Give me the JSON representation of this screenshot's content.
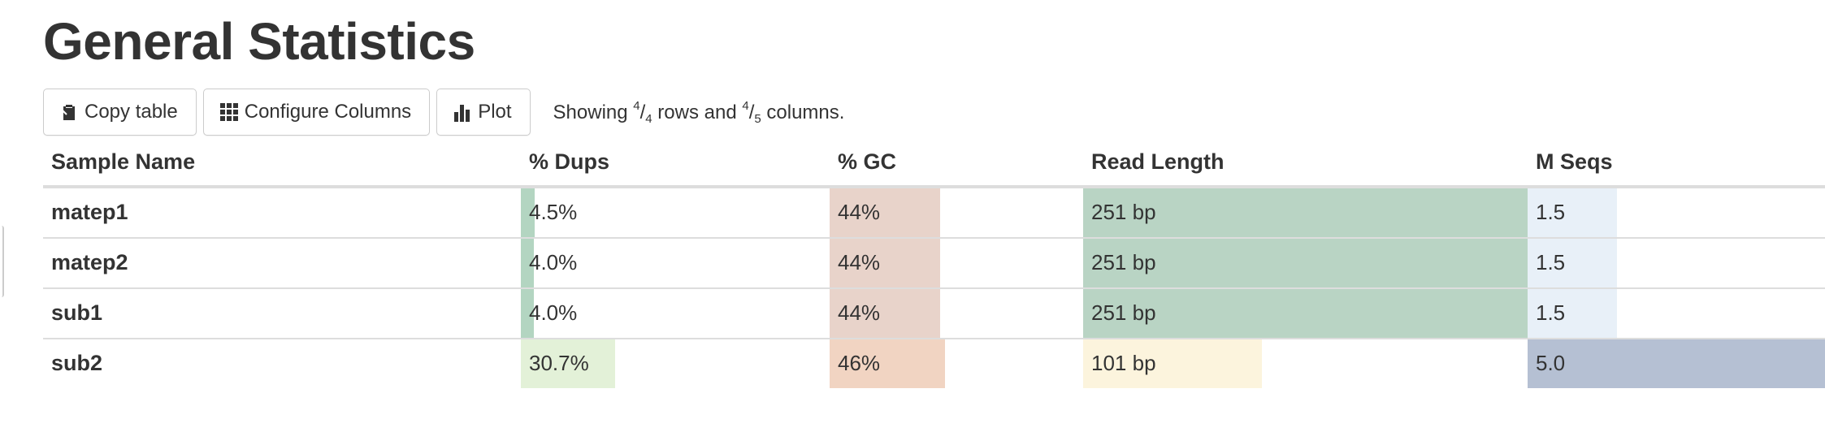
{
  "title": "General Statistics",
  "toolbar": {
    "copy_label": "Copy table",
    "configure_label": "Configure Columns",
    "plot_label": "Plot",
    "status_prefix": "Showing ",
    "rows_shown": "4",
    "rows_total": "4",
    "status_middle": " rows and ",
    "cols_shown": "4",
    "cols_total": "5",
    "status_suffix": " columns."
  },
  "columns": [
    "Sample Name",
    "% Dups",
    "% GC",
    "Read Length",
    "M Seqs"
  ],
  "rows": [
    {
      "name": "matep1",
      "dups": "4.5%",
      "gc": "44%",
      "len": "251 bp",
      "seqs": "1.5"
    },
    {
      "name": "matep2",
      "dups": "4.0%",
      "gc": "44%",
      "len": "251 bp",
      "seqs": "1.5"
    },
    {
      "name": "sub1",
      "dups": "4.0%",
      "gc": "44%",
      "len": "251 bp",
      "seqs": "1.5"
    },
    {
      "name": "sub2",
      "dups": "30.7%",
      "gc": "46%",
      "len": "101 bp",
      "seqs": "5.0"
    }
  ],
  "bar_levels": {
    "dups": [
      0.045,
      0.04,
      0.04,
      0.307
    ],
    "gc": [
      0.44,
      0.44,
      0.44,
      0.46
    ],
    "len": [
      1.0,
      1.0,
      1.0,
      0.402
    ],
    "seqs": [
      0.3,
      0.3,
      0.3,
      1.0
    ]
  },
  "bar_colors": {
    "dups": [
      "#b3d5c1",
      "#b3d5c1",
      "#b3d5c1",
      "#e3f1d8"
    ],
    "gc": [
      "#e8d3ca",
      "#e8d3ca",
      "#e8d3ca",
      "#f1d4c2"
    ],
    "len": [
      "#b9d4c4",
      "#b9d4c4",
      "#b9d4c4",
      "#fcf4dd"
    ],
    "seqs": [
      "#e8f0f8",
      "#e8f0f8",
      "#e8f0f8",
      "#b5c0d3"
    ]
  }
}
